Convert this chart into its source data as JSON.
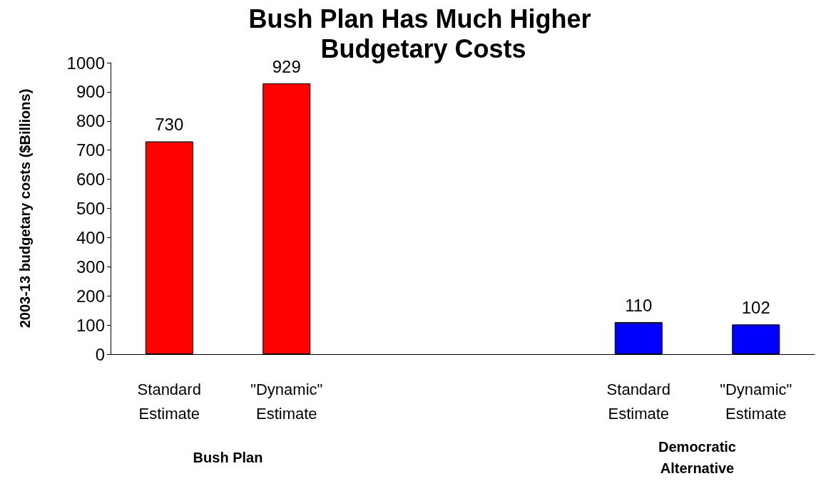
{
  "chart_data": {
    "type": "bar",
    "title": "Bush Plan Has Much Higher Budgetary Costs",
    "ylabel": "2003-13 budgetary costs ($Billions)",
    "categories": [
      "Standard\nEstimate",
      "\"Dynamic\"\nEstimate",
      null,
      null,
      "Standard\nEstimate",
      "\"Dynamic\"\nEstimate"
    ],
    "values": [
      730,
      929,
      null,
      null,
      110,
      102
    ],
    "colors": [
      "#ff0000",
      "#ff0000",
      null,
      null,
      "#0000ff",
      "#0000ff"
    ],
    "data_labels": true,
    "ylim": [
      0,
      1000
    ],
    "yticks": [
      0,
      100,
      200,
      300,
      400,
      500,
      600,
      700,
      800,
      900,
      1000
    ],
    "grid": false,
    "annotations": [
      "Bush Plan",
      "Democratic\nAlternative"
    ]
  }
}
